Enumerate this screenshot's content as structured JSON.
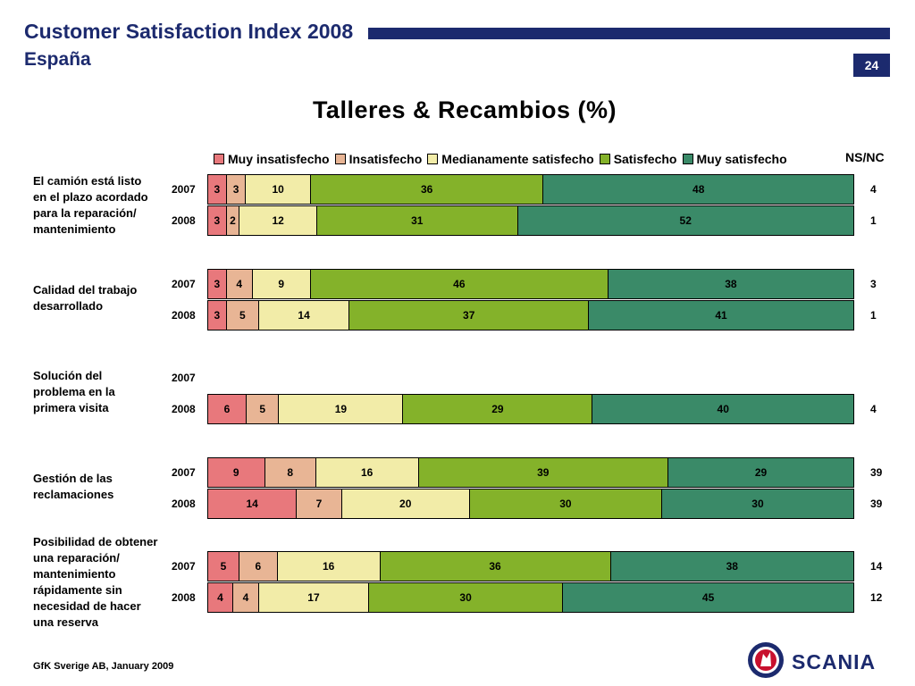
{
  "header": {
    "title": "Customer Satisfaction Index 2008",
    "subtitle": "España",
    "page_number": "24"
  },
  "footer": {
    "source": "GfK Sverige AB, January 2009"
  },
  "logo": {
    "text": "SCANIA",
    "color": "#1c2a6e"
  },
  "chart_data": {
    "type": "bar",
    "orientation": "horizontal",
    "stacked": true,
    "title": "Talleres & Recambios (%)",
    "legend_position": "top",
    "nsnc_label": "NS/NC",
    "categories_legend": [
      {
        "name": "Muy insatisfecho",
        "color": "#e8787c"
      },
      {
        "name": "Insatisfecho",
        "color": "#e8b595"
      },
      {
        "name": "Medianamente satisfecho",
        "color": "#f2eca8"
      },
      {
        "name": "Satisfecho",
        "color": "#84b22a"
      },
      {
        "name": "Muy satisfecho",
        "color": "#3a8a68"
      }
    ],
    "groups": [
      {
        "label_lines": [
          "El camión está listo",
          "en el plazo acordado",
          "para la reparación/",
          "mantenimiento"
        ],
        "rows": [
          {
            "year": "2007",
            "values": [
              3,
              3,
              10,
              36,
              48
            ],
            "nsnc": "4"
          },
          {
            "year": "2008",
            "values": [
              3,
              2,
              12,
              31,
              52
            ],
            "nsnc": "1"
          }
        ]
      },
      {
        "label_lines": [
          "Calidad del trabajo",
          "desarrollado"
        ],
        "rows": [
          {
            "year": "2007",
            "values": [
              3,
              4,
              9,
              46,
              38
            ],
            "nsnc": "3"
          },
          {
            "year": "2008",
            "values": [
              3,
              5,
              14,
              37,
              41
            ],
            "nsnc": "1"
          }
        ]
      },
      {
        "label_lines": [
          "Solución del",
          "problema en la",
          "primera visita"
        ],
        "rows": [
          {
            "year": "2007",
            "values": null,
            "nsnc": ""
          },
          {
            "year": "2008",
            "values": [
              6,
              5,
              19,
              29,
              40
            ],
            "nsnc": "4"
          }
        ]
      },
      {
        "label_lines": [
          "Gestión de las",
          "reclamaciones"
        ],
        "rows": [
          {
            "year": "2007",
            "values": [
              9,
              8,
              16,
              39,
              29
            ],
            "nsnc": "39"
          },
          {
            "year": "2008",
            "values": [
              14,
              7,
              20,
              30,
              30
            ],
            "nsnc": "39"
          }
        ]
      },
      {
        "label_lines": [
          "Posibilidad de obtener",
          "una reparación/",
          "mantenimiento",
          "rápidamente sin",
          "necesidad de hacer",
          "una reserva"
        ],
        "rows": [
          {
            "year": "2007",
            "values": [
              5,
              6,
              16,
              36,
              38
            ],
            "nsnc": "14"
          },
          {
            "year": "2008",
            "values": [
              4,
              4,
              17,
              30,
              45
            ],
            "nsnc": "12"
          }
        ]
      }
    ]
  }
}
